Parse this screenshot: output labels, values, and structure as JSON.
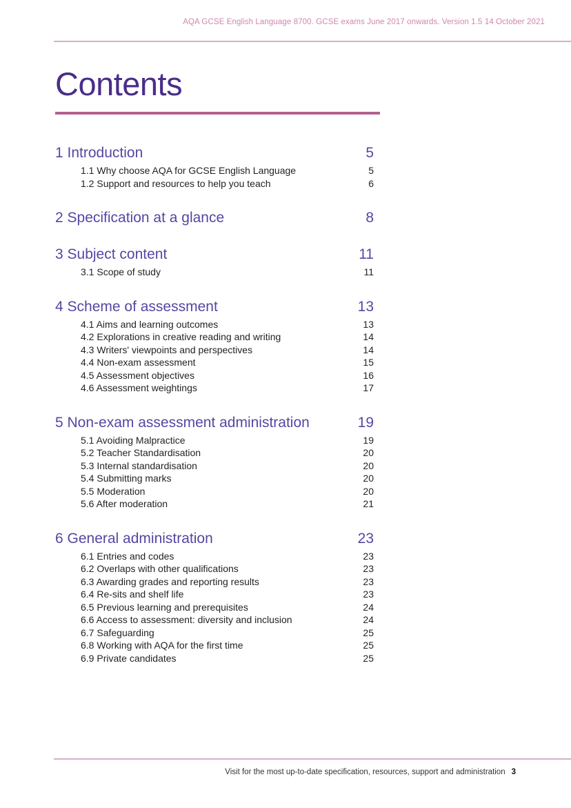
{
  "header": {
    "text": "AQA GCSE English Language 8700. GCSE exams June 2017 onwards. Version 1.5 14 October 2021"
  },
  "title": "Contents",
  "toc": {
    "sections": [
      {
        "label": "1 Introduction",
        "page": "5",
        "subsections": [
          {
            "label": "1.1 Why choose AQA for GCSE English Language",
            "page": "5"
          },
          {
            "label": "1.2 Support and resources to help you teach",
            "page": "6"
          }
        ]
      },
      {
        "label": "2 Specification at a glance",
        "page": "8",
        "subsections": []
      },
      {
        "label": "3 Subject content",
        "page": "11",
        "subsections": [
          {
            "label": "3.1 Scope of study",
            "page": "11"
          }
        ]
      },
      {
        "label": "4 Scheme of assessment",
        "page": "13",
        "subsections": [
          {
            "label": "4.1 Aims and learning outcomes",
            "page": "13"
          },
          {
            "label": "4.2 Explorations in creative reading and writing",
            "page": "14"
          },
          {
            "label": "4.3 Writers' viewpoints and perspectives",
            "page": "14"
          },
          {
            "label": "4.4 Non-exam assessment",
            "page": "15"
          },
          {
            "label": "4.5 Assessment objectives",
            "page": "16"
          },
          {
            "label": "4.6 Assessment weightings",
            "page": "17"
          }
        ]
      },
      {
        "label": "5 Non-exam assessment administration",
        "page": "19",
        "subsections": [
          {
            "label": "5.1 Avoiding Malpractice",
            "page": "19"
          },
          {
            "label": "5.2 Teacher Standardisation",
            "page": "20"
          },
          {
            "label": "5.3 Internal standardisation",
            "page": "20"
          },
          {
            "label": "5.4 Submitting marks",
            "page": "20"
          },
          {
            "label": "5.5 Moderation",
            "page": "20"
          },
          {
            "label": "5.6 After moderation",
            "page": "21"
          }
        ]
      },
      {
        "label": "6 General administration",
        "page": "23",
        "subsections": [
          {
            "label": "6.1 Entries and codes",
            "page": "23"
          },
          {
            "label": "6.2 Overlaps with other qualifications",
            "page": "23"
          },
          {
            "label": "6.3 Awarding grades and reporting results",
            "page": "23"
          },
          {
            "label": "6.4 Re-sits and shelf life",
            "page": "23"
          },
          {
            "label": "6.5 Previous learning and prerequisites",
            "page": "24"
          },
          {
            "label": "6.6 Access to assessment: diversity and inclusion",
            "page": "24"
          },
          {
            "label": "6.7 Safeguarding",
            "page": "25"
          },
          {
            "label": "6.8 Working with AQA for the first time",
            "page": "25"
          },
          {
            "label": "6.9 Private candidates",
            "page": "25"
          }
        ]
      }
    ]
  },
  "footer": {
    "text": "Visit for the most up-to-date specification, resources, support and administration",
    "page_number": "3"
  },
  "colors": {
    "header_pink": "#cf86ad",
    "rule_pink": "#d9afca",
    "title_purple": "#4a2d88",
    "underline_pink": "#b2628f",
    "heading_purple": "#5447a2",
    "body_black": "#231f20"
  }
}
